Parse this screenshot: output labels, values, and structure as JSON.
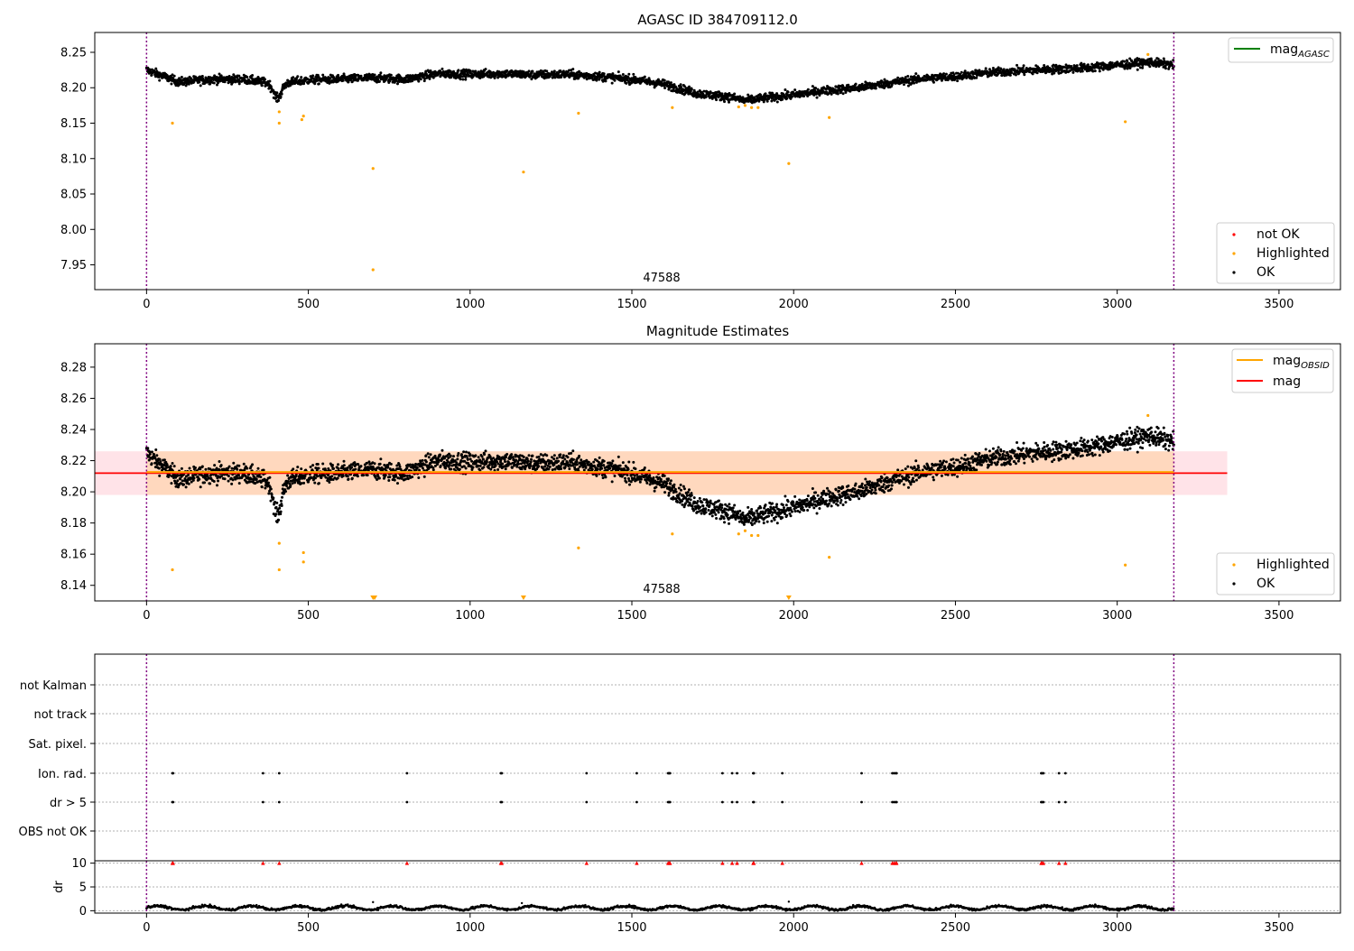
{
  "chart_data": [
    {
      "type": "scatter",
      "title": "AGASC ID 384709112.0",
      "xlim": [
        -160,
        3690
      ],
      "ylim": [
        7.915,
        8.278
      ],
      "x_ticks": [
        0,
        500,
        1000,
        1500,
        2000,
        2500,
        3000,
        3500
      ],
      "y_ticks": [
        7.95,
        8.0,
        8.05,
        8.1,
        8.15,
        8.2,
        8.25
      ],
      "y_tick_labels": [
        "7.95",
        "8.00",
        "8.05",
        "8.10",
        "8.15",
        "8.20",
        "8.25"
      ],
      "obsid_label": "47588",
      "obs_boundaries": [
        0,
        3175
      ],
      "line_legend": [
        {
          "name": "mag",
          "subscript": "AGASC",
          "color": "#008000"
        }
      ],
      "marker_legend": [
        {
          "name": "not OK",
          "color": "#ff0000"
        },
        {
          "name": "Highlighted",
          "color": "#ffa500"
        },
        {
          "name": "OK",
          "color": "#000000"
        }
      ],
      "ok_trend": {
        "x": [
          0,
          100,
          200,
          300,
          400,
          500,
          600,
          700,
          800,
          900,
          1000,
          1100,
          1200,
          1300,
          1400,
          1500,
          1600,
          1700,
          1800,
          1850,
          1900,
          2000,
          2100,
          2200,
          2300,
          2400,
          2500,
          2600,
          2700,
          2800,
          2900,
          3000,
          3100,
          3175
        ],
        "y": [
          8.225,
          8.208,
          8.212,
          8.212,
          8.205,
          8.211,
          8.212,
          8.214,
          8.212,
          8.22,
          8.219,
          8.22,
          8.218,
          8.219,
          8.216,
          8.212,
          8.205,
          8.192,
          8.187,
          8.182,
          8.185,
          8.19,
          8.196,
          8.2,
          8.207,
          8.213,
          8.216,
          8.221,
          8.224,
          8.226,
          8.228,
          8.232,
          8.236,
          8.232
        ],
        "scatter": 0.006
      },
      "dips": [
        {
          "x": 405,
          "y": 8.185
        }
      ],
      "highlighted": {
        "x": [
          80,
          410,
          410,
          480,
          485,
          700,
          700,
          1165,
          1335,
          1625,
          1830,
          1850,
          1870,
          1890,
          1985,
          2110,
          3025,
          3095
        ],
        "y": [
          8.15,
          8.166,
          8.15,
          8.155,
          8.16,
          8.086,
          7.943,
          8.081,
          8.164,
          8.172,
          8.173,
          8.175,
          8.172,
          8.172,
          8.093,
          8.158,
          8.152,
          8.247
        ]
      }
    },
    {
      "type": "scatter",
      "title": "Magnitude Estimates",
      "xlim": [
        -160,
        3690
      ],
      "ylim": [
        8.13,
        8.295
      ],
      "x_ticks": [
        0,
        500,
        1000,
        1500,
        2000,
        2500,
        3000,
        3500
      ],
      "y_ticks": [
        8.14,
        8.16,
        8.18,
        8.2,
        8.22,
        8.24,
        8.26,
        8.28
      ],
      "y_tick_labels": [
        "8.14",
        "8.16",
        "8.18",
        "8.20",
        "8.22",
        "8.24",
        "8.26",
        "8.28"
      ],
      "obsid_label": "47588",
      "obs_boundaries": [
        0,
        3175
      ],
      "mag": 8.212,
      "mag_band": [
        8.198,
        8.226
      ],
      "mag_span_x": [
        -160,
        3340
      ],
      "mag_obsid": 8.212,
      "mag_obsid_span_x": [
        0,
        3175
      ],
      "line_legend": [
        {
          "name": "mag",
          "subscript": "OBSID",
          "color": "#ffa500"
        },
        {
          "name": "mag",
          "subscript": "",
          "color": "#ff0000"
        }
      ],
      "marker_legend": [
        {
          "name": "Highlighted",
          "color": "#ffa500"
        },
        {
          "name": "OK",
          "color": "#000000"
        }
      ],
      "highlighted": {
        "x": [
          80,
          410,
          410,
          485,
          485,
          1335,
          1625,
          1830,
          1850,
          1870,
          1890,
          2110,
          3025,
          3095
        ],
        "y": [
          8.15,
          8.167,
          8.15,
          8.155,
          8.161,
          8.164,
          8.173,
          8.173,
          8.175,
          8.172,
          8.172,
          8.158,
          8.153,
          8.249
        ]
      },
      "off_scale_markers_x": [
        700,
        705,
        1165,
        1985
      ]
    },
    {
      "type": "scatter",
      "title": "",
      "xlim": [
        -160,
        3690
      ],
      "flag_rows": [
        "not Kalman",
        "not track",
        "Sat. pixel.",
        "Ion. rad.",
        "dr > 5",
        "OBS not OK"
      ],
      "flagged_x": [
        80,
        82,
        360,
        410,
        805,
        1095,
        1098,
        1360,
        1515,
        1612,
        1615,
        1618,
        1780,
        1810,
        1825,
        1875,
        1877,
        1965,
        2210,
        2305,
        2310,
        2315,
        2318,
        2765,
        2768,
        2772,
        2820,
        2840
      ],
      "dr_ylabel": "dr",
      "dr_ylim": [
        -0.5,
        10.5
      ],
      "dr_y_ticks": [
        0,
        5,
        10
      ],
      "dr_y_tick_labels": [
        "0",
        "5",
        "10"
      ],
      "dr_flag_value": 10,
      "dr_outliers": [
        {
          "x": 700,
          "y": 1.8
        },
        {
          "x": 1160,
          "y": 1.6
        },
        {
          "x": 1985,
          "y": 1.9
        }
      ],
      "x_ticks": [
        0,
        500,
        1000,
        1500,
        2000,
        2500,
        3000,
        3500
      ],
      "obs_boundaries": [
        0,
        3175
      ]
    }
  ]
}
